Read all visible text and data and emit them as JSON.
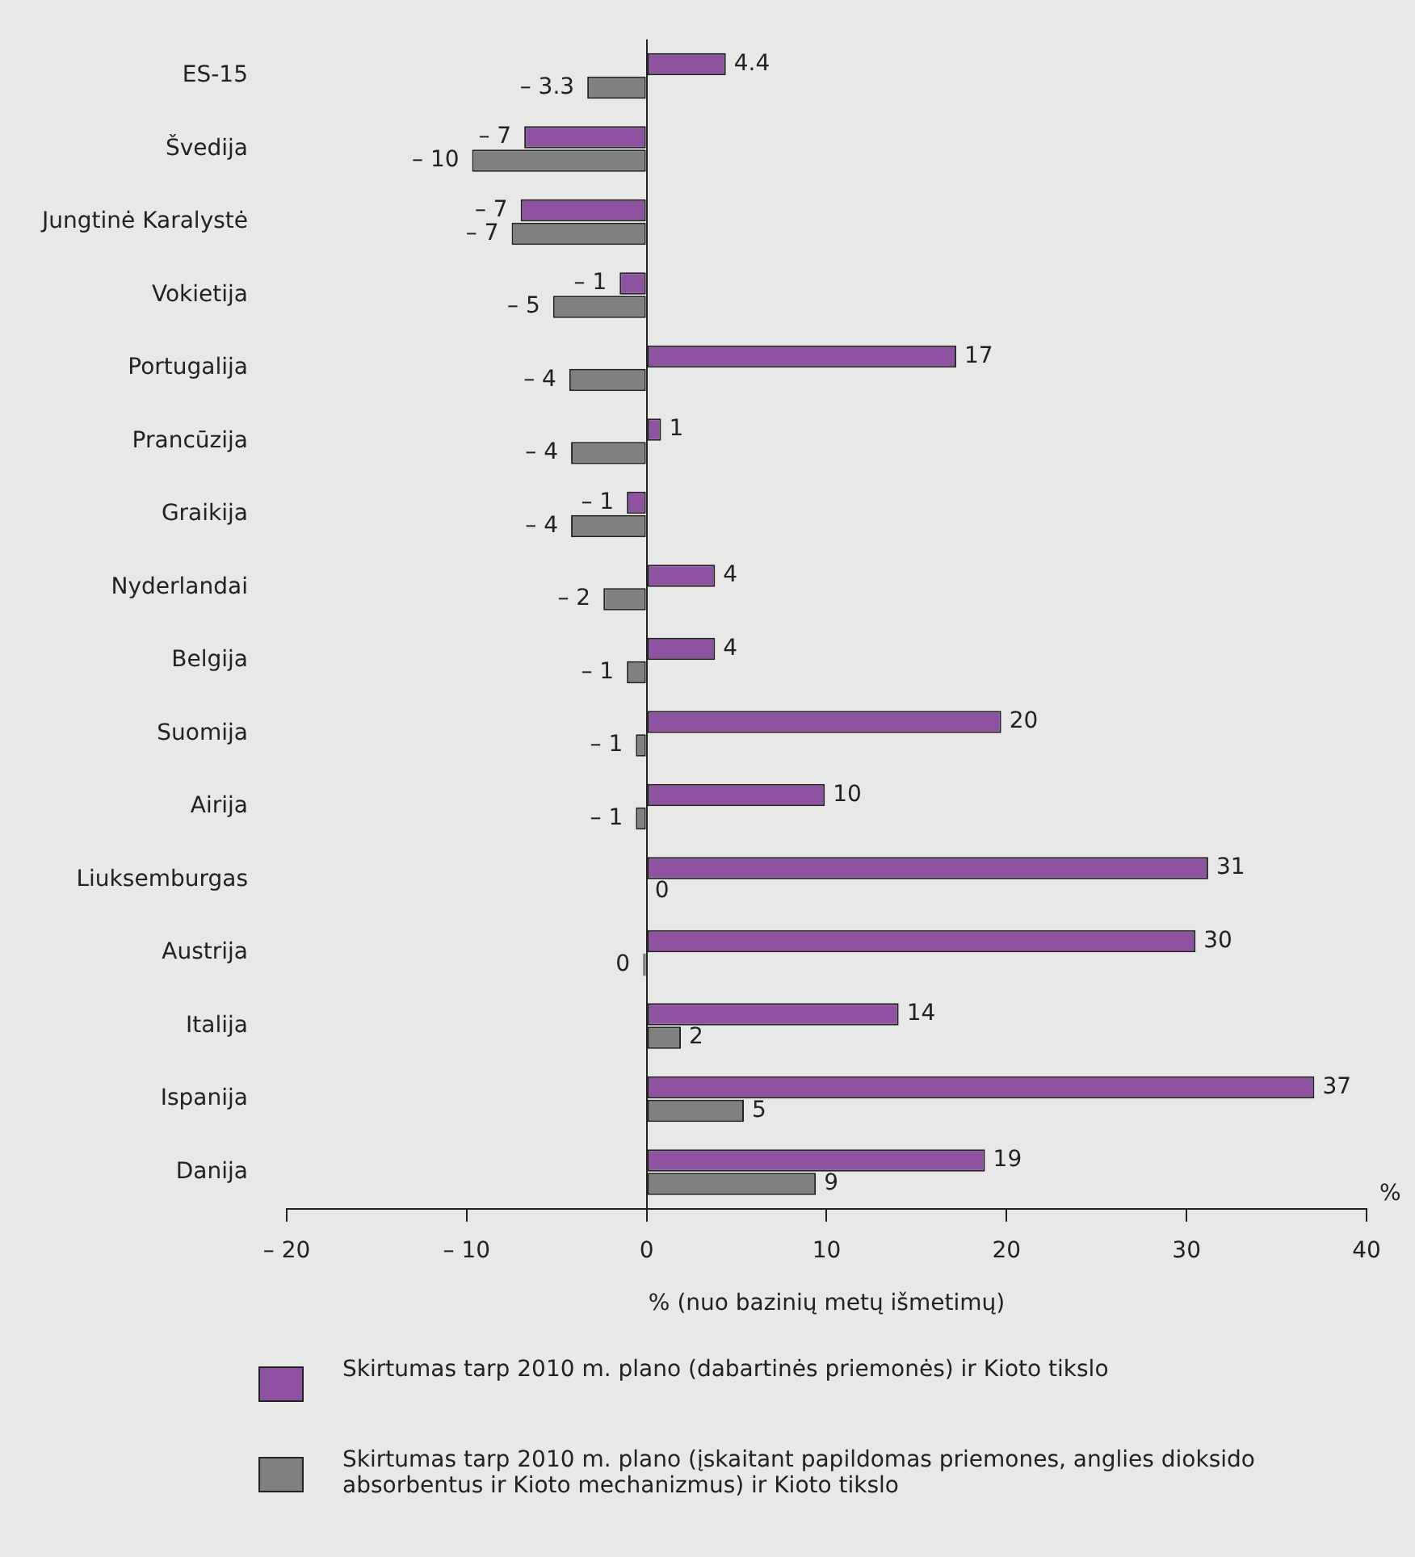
{
  "chart_data": {
    "type": "bar",
    "orientation": "horizontal",
    "xlabel": "% (nuo bazinių metų išmetimų)",
    "legend": "bottom",
    "annotations": [
      "%"
    ],
    "categories": [
      "ES-15",
      "Švedija",
      "Jungtinė Karalystė",
      "Vokietija",
      "Portugalija",
      "Prancūzija",
      "Graikija",
      "Nyderlandai",
      "Belgija",
      "Suomija",
      "Airija",
      "Liuksemburgas",
      "Austrija",
      "Italija",
      "Ispanija",
      "Danija"
    ],
    "series": [
      {
        "name": "Skirtumas tarp 2010 m. plano (dabartinės priemonės) ir Kioto tikslo",
        "color": "#8e52a0",
        "values": [
          4.4,
          -6.8,
          -7,
          -1.5,
          17.2,
          0.8,
          -1.1,
          3.8,
          3.8,
          19.7,
          9.9,
          31.2,
          30.5,
          14,
          37.1,
          18.8
        ],
        "value_labels": [
          "4.4",
          "– 7",
          "– 7",
          "– 1",
          "17",
          "1",
          "– 1",
          "4",
          "4",
          "20",
          "10",
          "31",
          "30",
          "14",
          "37",
          "19"
        ]
      },
      {
        "name": "Skirtumas tarp 2010 m. plano (įskaitant papildomas priemones, anglies dioksido absorbentus ir Kioto mechanizmus) ir Kioto tikslo",
        "color": "#808080",
        "values": [
          -3.3,
          -9.7,
          -7.5,
          -5.2,
          -4.3,
          -4.2,
          -4.2,
          -2.4,
          -1.1,
          -0.6,
          -0.6,
          0,
          -0.2,
          1.9,
          5.4,
          9.4
        ],
        "value_labels": [
          "– 3.3",
          "– 10",
          "– 7",
          "– 5",
          "– 4",
          "– 4",
          "– 4",
          "– 2",
          "– 1",
          "– 1",
          "– 1",
          "0",
          "0",
          "2",
          "5",
          "9"
        ]
      }
    ],
    "xlim": [
      -20,
      40
    ],
    "xticks": [
      {
        "value": -20,
        "label": "– 20"
      },
      {
        "value": -10,
        "label": "– 10"
      },
      0,
      10,
      20,
      30,
      40
    ]
  }
}
